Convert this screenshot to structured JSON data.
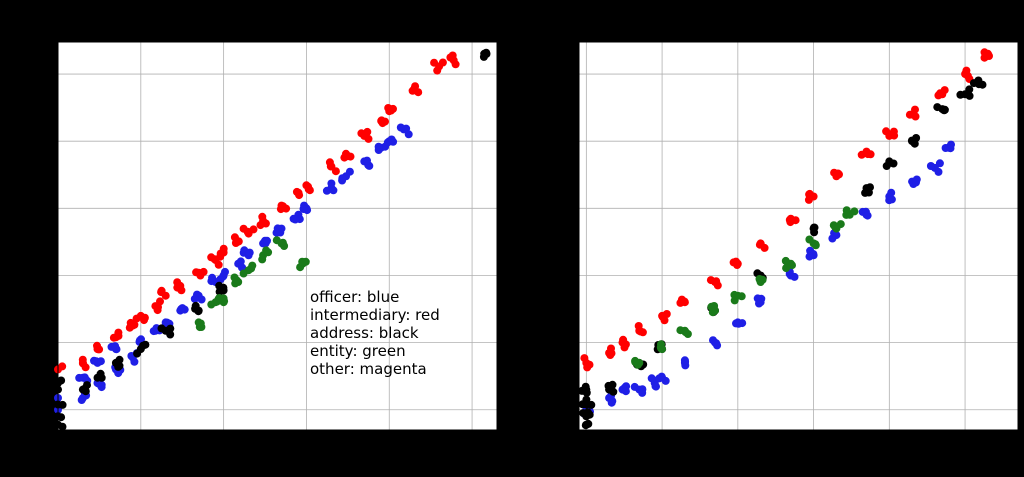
{
  "chart_data": [
    {
      "type": "scatter",
      "x_scale": "log",
      "y_scale": "log",
      "grid": true,
      "xlim": [
        1,
        200000
      ],
      "ylim": [
        0.5,
        300000
      ],
      "annotation_lines": [
        "officer: blue",
        "intermediary: red",
        "address: black",
        "entity: green",
        "other: magenta"
      ],
      "series": [
        {
          "color": "#1f1fe6",
          "points": [
            [
              1,
              1.0
            ],
            [
              1,
              1.5
            ],
            [
              2,
              1.5
            ],
            [
              2,
              3
            ],
            [
              3,
              2.5
            ],
            [
              3,
              5
            ],
            [
              5,
              4
            ],
            [
              5,
              8
            ],
            [
              8,
              6
            ],
            [
              10,
              10
            ],
            [
              15,
              15
            ],
            [
              20,
              20
            ],
            [
              30,
              30
            ],
            [
              50,
              50
            ],
            [
              80,
              80
            ],
            [
              100,
              100
            ],
            [
              150,
              150
            ],
            [
              200,
              200
            ],
            [
              300,
              300
            ],
            [
              500,
              500
            ],
            [
              800,
              800
            ],
            [
              1000,
              1000
            ],
            [
              2000,
              2000
            ],
            [
              3000,
              3000
            ],
            [
              5000,
              5000
            ],
            [
              8000,
              8000
            ],
            [
              10000,
              10000
            ],
            [
              15000,
              15000
            ]
          ]
        },
        {
          "color": "#ff0000",
          "points": [
            [
              1,
              4
            ],
            [
              2,
              5
            ],
            [
              3,
              8
            ],
            [
              5,
              12
            ],
            [
              8,
              18
            ],
            [
              10,
              25
            ],
            [
              15,
              35
            ],
            [
              20,
              50
            ],
            [
              30,
              70
            ],
            [
              50,
              110
            ],
            [
              80,
              170
            ],
            [
              100,
              220
            ],
            [
              150,
              320
            ],
            [
              200,
              420
            ],
            [
              300,
              650
            ],
            [
              500,
              1100
            ],
            [
              800,
              1700
            ],
            [
              1000,
              2200
            ],
            [
              2000,
              4200
            ],
            [
              3000,
              6500
            ],
            [
              5000,
              12000
            ],
            [
              8000,
              20000
            ],
            [
              10000,
              28000
            ],
            [
              20000,
              60000
            ],
            [
              40000,
              130000
            ],
            [
              60000,
              160000
            ]
          ]
        },
        {
          "color": "#000000",
          "points": [
            [
              1,
              0.6
            ],
            [
              1,
              0.8
            ],
            [
              1,
              1.2
            ],
            [
              1,
              2
            ],
            [
              1,
              2.5
            ],
            [
              2,
              2
            ],
            [
              3,
              3
            ],
            [
              5,
              5
            ],
            [
              10,
              8
            ],
            [
              20,
              15
            ],
            [
              50,
              30
            ],
            [
              100,
              60
            ],
            [
              140000,
              200000
            ]
          ]
        },
        {
          "color": "#1a7a1a",
          "points": [
            [
              50,
              20
            ],
            [
              80,
              40
            ],
            [
              100,
              40
            ],
            [
              150,
              80
            ],
            [
              200,
              120
            ],
            [
              300,
              200
            ],
            [
              500,
              300
            ],
            [
              900,
              150
            ]
          ]
        },
        {
          "color": "#dd00dd",
          "points": []
        }
      ]
    },
    {
      "type": "scatter",
      "x_scale": "log",
      "y_scale": "log",
      "grid": true,
      "xlim": [
        0.8,
        500000
      ],
      "ylim": [
        0.5,
        300000
      ],
      "series": [
        {
          "color": "#1f1fe6",
          "points": [
            [
              1,
              1
            ],
            [
              2,
              1.5
            ],
            [
              3,
              2
            ],
            [
              5,
              2
            ],
            [
              8,
              2.5
            ],
            [
              10,
              3
            ],
            [
              20,
              5
            ],
            [
              50,
              10
            ],
            [
              100,
              20
            ],
            [
              200,
              40
            ],
            [
              500,
              100
            ],
            [
              1000,
              200
            ],
            [
              2000,
              400
            ],
            [
              5000,
              800
            ],
            [
              10000,
              1500
            ],
            [
              20000,
              2500
            ],
            [
              40000,
              4000
            ],
            [
              60000,
              8000
            ]
          ]
        },
        {
          "color": "#ff0000",
          "points": [
            [
              1,
              5
            ],
            [
              2,
              7
            ],
            [
              3,
              10
            ],
            [
              5,
              15
            ],
            [
              10,
              25
            ],
            [
              20,
              40
            ],
            [
              50,
              80
            ],
            [
              100,
              150
            ],
            [
              200,
              300
            ],
            [
              500,
              700
            ],
            [
              1000,
              1500
            ],
            [
              2000,
              3000
            ],
            [
              5000,
              7000
            ],
            [
              10000,
              12000
            ],
            [
              20000,
              25000
            ],
            [
              50000,
              50000
            ],
            [
              100000,
              100000
            ],
            [
              200000,
              200000
            ]
          ]
        },
        {
          "color": "#000000",
          "points": [
            [
              1,
              0.6
            ],
            [
              1,
              0.8
            ],
            [
              1,
              1.2
            ],
            [
              1,
              2
            ],
            [
              2,
              2
            ],
            [
              5,
              5
            ],
            [
              10,
              8
            ],
            [
              50,
              30
            ],
            [
              200,
              100
            ],
            [
              1000,
              500
            ],
            [
              5000,
              2000
            ],
            [
              10000,
              5000
            ],
            [
              20000,
              10000
            ],
            [
              50000,
              30000
            ],
            [
              100000,
              50000
            ],
            [
              150000,
              80000
            ]
          ]
        },
        {
          "color": "#1a7a1a",
          "points": [
            [
              5,
              5
            ],
            [
              10,
              8
            ],
            [
              20,
              15
            ],
            [
              50,
              30
            ],
            [
              100,
              50
            ],
            [
              200,
              80
            ],
            [
              500,
              150
            ],
            [
              1000,
              300
            ],
            [
              2000,
              500
            ],
            [
              3000,
              800
            ]
          ]
        },
        {
          "color": "#dd00dd",
          "points": []
        }
      ]
    }
  ]
}
